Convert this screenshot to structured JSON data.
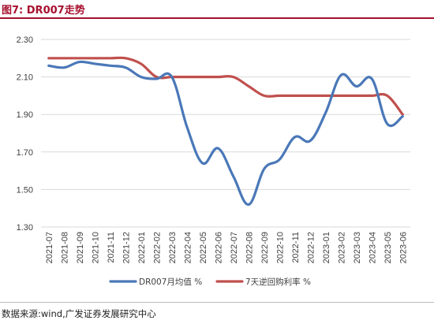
{
  "title": "图7:  DR007走势",
  "source": "数据来源:wind,广发证券发展研究中心",
  "chart_data": {
    "type": "line",
    "categories": [
      "2021-07",
      "2021-08",
      "2021-09",
      "2021-10",
      "2021-11",
      "2021-12",
      "2022-01",
      "2022-02",
      "2022-03",
      "2022-04",
      "2022-05",
      "2022-06",
      "2022-07",
      "2022-08",
      "2022-09",
      "2022-10",
      "2022-11",
      "2022-12",
      "2023-01",
      "2023-02",
      "2023-03",
      "2023-04",
      "2023-05",
      "2023-06"
    ],
    "ylim": [
      1.3,
      2.3
    ],
    "yticks": [
      "1.30",
      "1.50",
      "1.70",
      "1.90",
      "2.10",
      "2.30"
    ],
    "grid": true,
    "legend_position": "bottom",
    "series": [
      {
        "name": "DR007月均值 %",
        "color": "#4a78b8",
        "values": [
          2.16,
          2.15,
          2.18,
          2.17,
          2.16,
          2.15,
          2.1,
          2.09,
          2.1,
          1.83,
          1.64,
          1.72,
          1.57,
          1.42,
          1.61,
          1.66,
          1.78,
          1.76,
          1.91,
          2.11,
          2.05,
          2.09,
          1.85,
          1.89
        ]
      },
      {
        "name": "7天逆回购利率 %",
        "color": "#c0504d",
        "values": [
          2.2,
          2.2,
          2.2,
          2.2,
          2.2,
          2.2,
          2.17,
          2.1,
          2.1,
          2.1,
          2.1,
          2.1,
          2.1,
          2.05,
          2.0,
          2.0,
          2.0,
          2.0,
          2.0,
          2.0,
          2.0,
          2.0,
          2.0,
          1.9
        ]
      }
    ]
  }
}
